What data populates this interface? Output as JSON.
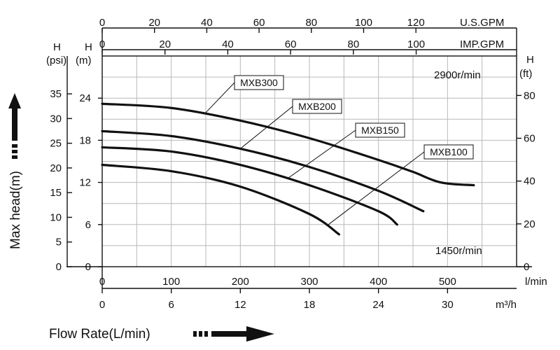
{
  "chart_data": {
    "type": "line",
    "speed_labels": [
      "2900r/min",
      "1450r/min"
    ],
    "axes": {
      "x_lmin": {
        "unit": "l/min",
        "range": [
          0,
          600
        ],
        "ticks": [
          0,
          100,
          200,
          300,
          400,
          500
        ]
      },
      "x_m3h": {
        "unit": "m³/h",
        "range": [
          0,
          36
        ],
        "ticks": [
          0,
          6,
          12,
          18,
          24,
          30
        ]
      },
      "x_usgpm": {
        "unit": "U.S.GPM",
        "range": [
          0,
          158.5
        ],
        "ticks": [
          0,
          20,
          40,
          60,
          80,
          100,
          120
        ]
      },
      "x_impgpm": {
        "unit": "IMP.GPM",
        "range": [
          0,
          132
        ],
        "ticks": [
          0,
          20,
          40,
          60,
          80,
          100
        ]
      },
      "y_m": {
        "label": "H",
        "unit": "(m)",
        "range": [
          0,
          30
        ],
        "ticks": [
          0,
          6,
          12,
          18,
          24
        ]
      },
      "y_psi": {
        "label": "H",
        "unit": "(psi)",
        "range": [
          0,
          42.7
        ],
        "ticks": [
          0,
          5,
          10,
          15,
          20,
          25,
          30,
          35
        ]
      },
      "y_ft": {
        "label": "H",
        "unit": "(ft)",
        "range": [
          0,
          98.4
        ],
        "ticks": [
          0,
          20,
          40,
          60,
          80
        ]
      }
    },
    "xlabel": "Flow Rate(L/min)",
    "ylabel": "Max head(m)",
    "grid": true,
    "series": [
      {
        "name": "MXB300",
        "x": [
          0,
          100,
          200,
          300,
          400,
          450,
          490,
          538
        ],
        "y": [
          23.2,
          22.6,
          20.8,
          18.3,
          15.2,
          13.5,
          12.0,
          11.6
        ]
      },
      {
        "name": "MXB200",
        "x": [
          0,
          100,
          200,
          300,
          400,
          465
        ],
        "y": [
          19.3,
          18.6,
          16.8,
          14.2,
          10.8,
          7.9
        ]
      },
      {
        "name": "MXB150",
        "x": [
          0,
          100,
          200,
          300,
          400,
          427
        ],
        "y": [
          17.0,
          16.4,
          14.5,
          11.6,
          7.9,
          6.0
        ]
      },
      {
        "name": "MXB100",
        "x": [
          0,
          100,
          200,
          300,
          343
        ],
        "y": [
          14.5,
          13.6,
          11.4,
          7.5,
          4.6
        ]
      }
    ]
  },
  "arrows": {
    "up_icon": "arrow-up-icon",
    "right_icon": "arrow-right-icon"
  }
}
